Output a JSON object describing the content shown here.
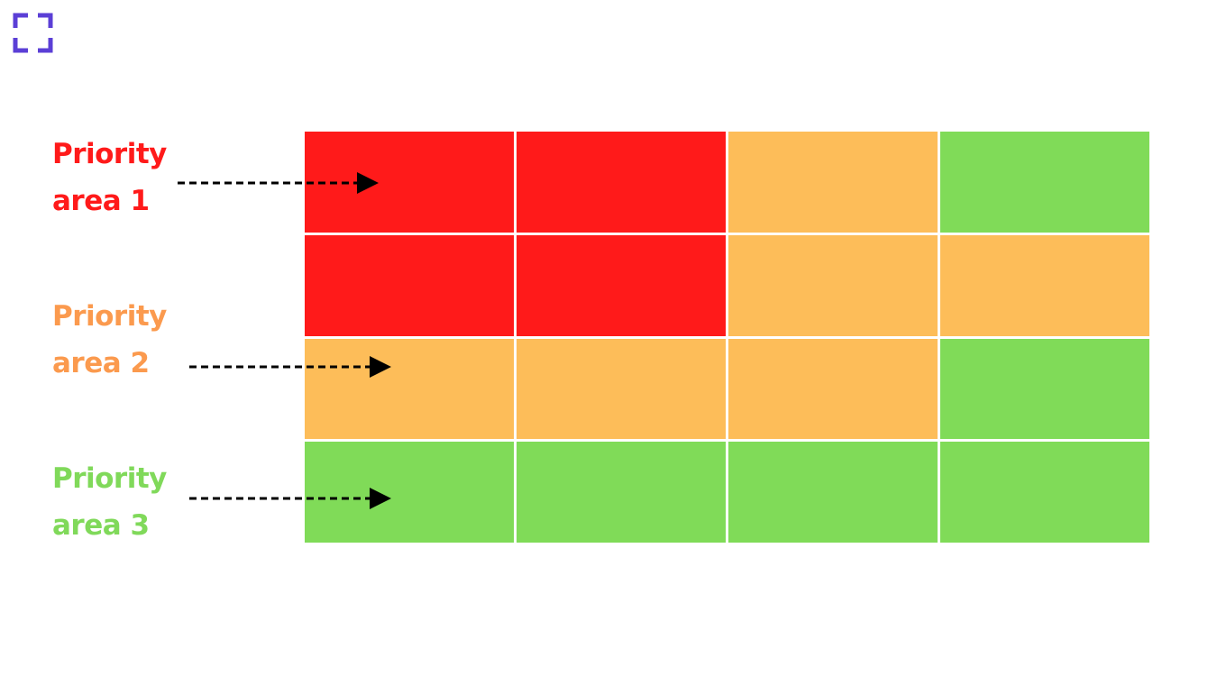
{
  "labels": [
    {
      "text": "Priority area 1",
      "color": "#ff1a1a"
    },
    {
      "text": "Priority area 2",
      "color": "#fb9a4e"
    },
    {
      "text": "Priority area 3",
      "color": "#80d95a"
    }
  ],
  "grid": [
    [
      "#ff1a1a",
      "#ff1a1a",
      "#fdbd59",
      "#80db58"
    ],
    [
      "#ff1a1a",
      "#ff1a1a",
      "#fdbd59",
      "#fdbd59"
    ],
    [
      "#fdbd59",
      "#fdbd59",
      "#fdbd59",
      "#80db58"
    ],
    [
      "#80db58",
      "#80db58",
      "#80db58",
      "#80db58"
    ]
  ]
}
